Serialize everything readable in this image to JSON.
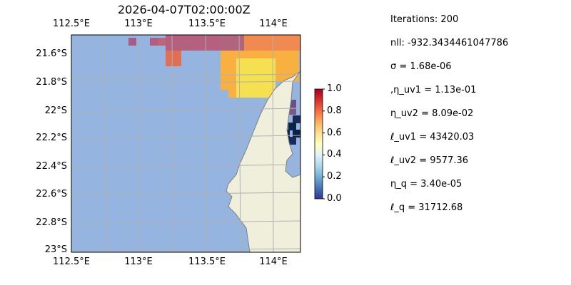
{
  "title": "2026-04-07T02:00:00Z",
  "map": {
    "lon_ticks": [
      "112.5°E",
      "113°E",
      "113.5°E",
      "114°E"
    ],
    "lat_ticks": [
      "21.6°S",
      "21.8°S",
      "22°S",
      "22.2°S",
      "22.4°S",
      "22.6°S",
      "22.8°S",
      "23°S"
    ],
    "colors": {
      "ocean": "#95b5e0",
      "land": "#efefdb",
      "coast": "#7f7f7f",
      "grid": "#b0b0b0"
    }
  },
  "colorbar": {
    "ticks": [
      "0.0",
      "0.2",
      "0.4",
      "0.6",
      "0.8",
      "1.0"
    ],
    "colormap": "RdYlBu_r",
    "range": [
      0,
      1
    ]
  },
  "stats": [
    "Iterations: 200",
    "nll: -932.3434461047786",
    "σ = 1.68e-06",
    ",η_uv1 = 1.13e-01",
    "η_uv2 = 8.09e-02",
    "ℓ_uv1 = 43420.03",
    "ℓ_uv2 = 9577.36",
    "η_q = 3.40e-05",
    "ℓ_q = 31712.68"
  ]
}
